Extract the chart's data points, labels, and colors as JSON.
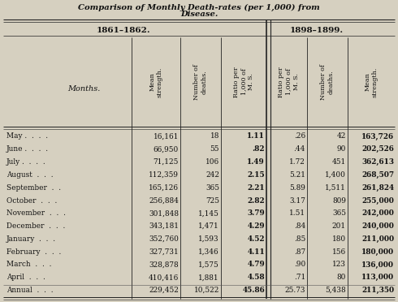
{
  "title_line1": "Comparison of Monthly Death-rates (per 1,000) from",
  "title_line2": "Disease.",
  "period1": "1861–1862.",
  "period2": "1898–1899.",
  "col_headers_1861": [
    "Mean\nstrength.",
    "Number of\ndeaths.",
    "Ratio per\n1,000 of\nM. S."
  ],
  "col_headers_1898": [
    "Ratio per\n1,000 of\nM. S.",
    "Number of\ndeaths.",
    "Mean\nstrength."
  ],
  "months": [
    "May",
    "June",
    "July",
    "August",
    "September",
    "October",
    "November",
    "December",
    "January",
    "February",
    "March",
    "April",
    "Annual"
  ],
  "month_dots": [
    "May .  .  .  .",
    "June .  .  .  .",
    "July .  .  .  .",
    "August  .  .  .",
    "September  .  .",
    "October  .  .  .",
    "November  .  .  .",
    "December  .  .  .",
    "January  .  .  .",
    "February  .  .  .",
    "March  .  .  .",
    "April  .  .  .",
    "Annual  .  .  ."
  ],
  "data_1861": [
    [
      "16,161",
      "18",
      "1.11"
    ],
    [
      "66,950",
      "55",
      ".82"
    ],
    [
      "71,125",
      "106",
      "1.49"
    ],
    [
      "112,359",
      "242",
      "2.15"
    ],
    [
      "165,126",
      "365",
      "2.21"
    ],
    [
      "256,884",
      "725",
      "2.82"
    ],
    [
      "301,848",
      "1,145",
      "3.79"
    ],
    [
      "343,181",
      "1,471",
      "4.29"
    ],
    [
      "352,760",
      "1,593",
      "4.52"
    ],
    [
      "327,731",
      "1,346",
      "4.11"
    ],
    [
      "328,878",
      "1,575",
      "4.79"
    ],
    [
      "410,416",
      "1,881",
      "4.58"
    ],
    [
      "229,452",
      "10,522",
      "45.86"
    ]
  ],
  "data_1898": [
    [
      ".26",
      "42",
      "163,726"
    ],
    [
      ".44",
      "90",
      "202,526"
    ],
    [
      "1.72",
      "451",
      "362,613"
    ],
    [
      "5.21",
      "1,400",
      "268,507"
    ],
    [
      "5.89",
      "1,511",
      "261,824"
    ],
    [
      "3.17",
      "809",
      "255,000"
    ],
    [
      "1.51",
      "365",
      "242,000"
    ],
    [
      ".84",
      "201",
      "240,000"
    ],
    [
      ".85",
      "180",
      "211,000"
    ],
    [
      ".87",
      "156",
      "180,000"
    ],
    [
      ".90",
      "123",
      "136,000"
    ],
    [
      ".71",
      "80",
      "113,000"
    ],
    [
      "25.73",
      "5,438",
      "211,350"
    ]
  ],
  "bg_color": "#d6d0c0",
  "text_color": "#111111",
  "line_color": "#222222"
}
